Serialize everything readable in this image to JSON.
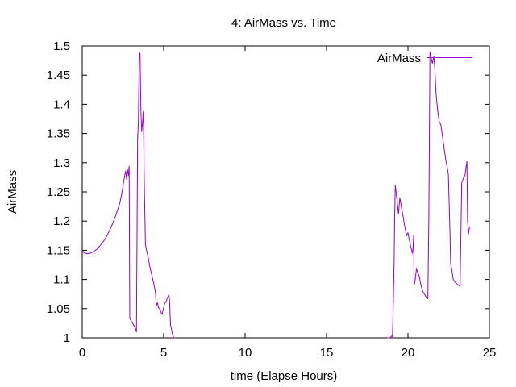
{
  "chart_data": {
    "type": "line",
    "title": "4: AirMass vs. Time",
    "xlabel": "time (Elapse Hours)",
    "ylabel": "AirMass",
    "xlim": [
      0,
      25
    ],
    "ylim": [
      1,
      1.5
    ],
    "x_ticks": [
      "0",
      "5",
      "10",
      "15",
      "20",
      "25"
    ],
    "y_ticks": [
      "1",
      "1.05",
      "1.1",
      "1.15",
      "1.2",
      "1.25",
      "1.3",
      "1.35",
      "1.4",
      "1.45",
      "1.5"
    ],
    "grid": false,
    "legend_position": "top-right",
    "series": [
      {
        "name": "AirMass",
        "color": "#9400d3",
        "segments": [
          [
            [
              0.0,
              1.15
            ],
            [
              0.1,
              1.146
            ],
            [
              0.3,
              1.144
            ],
            [
              0.5,
              1.145
            ],
            [
              0.7,
              1.148
            ],
            [
              0.9,
              1.152
            ],
            [
              1.1,
              1.158
            ],
            [
              1.3,
              1.165
            ],
            [
              1.5,
              1.174
            ],
            [
              1.7,
              1.185
            ],
            [
              1.9,
              1.198
            ],
            [
              2.1,
              1.213
            ],
            [
              2.3,
              1.23
            ],
            [
              2.45,
              1.25
            ],
            [
              2.55,
              1.268
            ],
            [
              2.62,
              1.28
            ],
            [
              2.67,
              1.286
            ],
            [
              2.72,
              1.272
            ],
            [
              2.78,
              1.288
            ],
            [
              2.83,
              1.278
            ],
            [
              2.88,
              1.294
            ],
            [
              2.92,
              1.033
            ],
            [
              3.2,
              1.02
            ],
            [
              3.28,
              1.015
            ],
            [
              3.33,
              1.01
            ],
            [
              3.4,
              1.34
            ],
            [
              3.45,
              1.372
            ],
            [
              3.5,
              1.48
            ],
            [
              3.55,
              1.488
            ],
            [
              3.6,
              1.392
            ],
            [
              3.65,
              1.353
            ],
            [
              3.7,
              1.368
            ],
            [
              3.75,
              1.388
            ],
            [
              3.82,
              1.25
            ],
            [
              3.88,
              1.16
            ],
            [
              3.95,
              1.15
            ],
            [
              4.05,
              1.138
            ],
            [
              4.15,
              1.122
            ],
            [
              4.25,
              1.11
            ],
            [
              4.35,
              1.098
            ],
            [
              4.45,
              1.085
            ],
            [
              4.5,
              1.076
            ],
            [
              4.55,
              1.055
            ],
            [
              4.62,
              1.06
            ],
            [
              4.68,
              1.052
            ],
            [
              4.75,
              1.05
            ],
            [
              4.82,
              1.045
            ],
            [
              4.9,
              1.04
            ],
            [
              4.97,
              1.048
            ],
            [
              5.05,
              1.058
            ],
            [
              5.15,
              1.062
            ],
            [
              5.25,
              1.07
            ],
            [
              5.32,
              1.074
            ],
            [
              5.36,
              1.064
            ],
            [
              5.42,
              1.022
            ],
            [
              5.5,
              1.012
            ],
            [
              5.55,
              1.005
            ],
            [
              5.62,
              1.0
            ],
            [
              5.7,
              1.0
            ]
          ],
          [
            [
              18.7,
              1.0
            ],
            [
              18.9,
              1.0
            ],
            [
              19.0,
              1.003
            ],
            [
              19.05,
              1.002
            ],
            [
              19.1,
              1.06
            ],
            [
              19.15,
              1.13
            ],
            [
              19.18,
              1.2
            ],
            [
              19.22,
              1.261
            ],
            [
              19.27,
              1.25
            ],
            [
              19.33,
              1.235
            ],
            [
              19.42,
              1.212
            ],
            [
              19.5,
              1.24
            ],
            [
              19.55,
              1.232
            ],
            [
              19.62,
              1.22
            ],
            [
              19.72,
              1.205
            ],
            [
              19.82,
              1.188
            ],
            [
              19.92,
              1.175
            ],
            [
              20.0,
              1.18
            ],
            [
              20.08,
              1.168
            ],
            [
              20.18,
              1.155
            ],
            [
              20.28,
              1.145
            ],
            [
              20.32,
              1.16
            ],
            [
              20.35,
              1.175
            ],
            [
              20.38,
              1.09
            ],
            [
              20.45,
              1.1
            ],
            [
              20.52,
              1.118
            ],
            [
              20.6,
              1.112
            ],
            [
              20.7,
              1.105
            ],
            [
              20.8,
              1.09
            ],
            [
              20.9,
              1.08
            ],
            [
              21.0,
              1.075
            ],
            [
              21.12,
              1.07
            ],
            [
              21.22,
              1.067
            ],
            [
              21.28,
              1.2
            ],
            [
              21.35,
              1.49
            ],
            [
              21.42,
              1.48
            ],
            [
              21.5,
              1.47
            ],
            [
              21.58,
              1.482
            ],
            [
              21.65,
              1.462
            ],
            [
              21.72,
              1.42
            ],
            [
              21.82,
              1.39
            ],
            [
              21.92,
              1.37
            ],
            [
              22.02,
              1.365
            ],
            [
              22.12,
              1.345
            ],
            [
              22.22,
              1.325
            ],
            [
              22.32,
              1.305
            ],
            [
              22.42,
              1.29
            ],
            [
              22.48,
              1.28
            ],
            [
              22.52,
              1.24
            ],
            [
              22.58,
              1.18
            ],
            [
              22.62,
              1.127
            ],
            [
              22.7,
              1.115
            ],
            [
              22.78,
              1.1
            ],
            [
              22.9,
              1.095
            ],
            [
              23.02,
              1.092
            ],
            [
              23.12,
              1.09
            ],
            [
              23.2,
              1.088
            ],
            [
              23.3,
              1.265
            ],
            [
              23.42,
              1.275
            ],
            [
              23.5,
              1.278
            ],
            [
              23.58,
              1.295
            ],
            [
              23.62,
              1.302
            ],
            [
              23.66,
              1.2
            ],
            [
              23.72,
              1.178
            ],
            [
              23.78,
              1.19
            ]
          ]
        ]
      }
    ]
  }
}
